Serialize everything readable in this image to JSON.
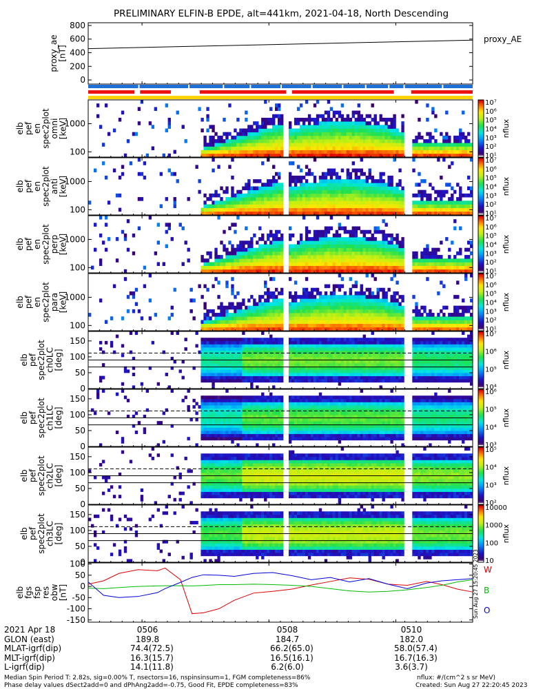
{
  "title": "PRELIMINARY ELFIN-B EPDE, alt=441km, 2021-04-18, North Descending",
  "side_stamp": "Sun Aug 27 15:20:45 2023",
  "colors": {
    "status_blue": "#1e6fd6",
    "status_red": "#ee1111",
    "status_yellow": "#ffd400",
    "w_line": "#dd0000",
    "b_line": "#00bb00",
    "o_line": "#0000dd",
    "grid_line": "#000000"
  },
  "chart_data": [
    {
      "type": "line",
      "name": "proxy_ae",
      "ylabel_lines": [
        "proxy_ae",
        "[nT]"
      ],
      "legend": "proxy_AE",
      "y_ticks": [
        "800",
        "600",
        "400",
        "200",
        "0"
      ],
      "y_tick_values": [
        800,
        600,
        400,
        200,
        0
      ],
      "ylim": [
        -60,
        840
      ],
      "x": [
        0,
        1
      ],
      "y": [
        460,
        585
      ]
    },
    {
      "type": "heatmap",
      "name": "spec-perp-omni",
      "ylabel_lines": [
        "elb",
        "pef",
        "en",
        "spec2plot",
        "omni",
        "[keV]"
      ],
      "y_ticks": [
        "1000",
        "100"
      ],
      "y_tick_values": [
        1000,
        100
      ],
      "ylim_log": [
        65,
        7000
      ],
      "colorbar": {
        "label": "nflux",
        "ticks": [
          "10⁷",
          "10⁶",
          "10⁵",
          "10⁴",
          "10³",
          "10²",
          "10¹"
        ],
        "values": [
          7,
          6,
          5,
          4,
          3,
          2,
          1
        ]
      }
    },
    {
      "type": "heatmap",
      "name": "spec-perp-anti",
      "ylabel_lines": [
        "elb",
        "pef",
        "en",
        "spec2plot",
        "anti",
        "[keV]"
      ],
      "y_ticks": [
        "1000",
        "100"
      ],
      "y_tick_values": [
        1000,
        100
      ],
      "ylim_log": [
        65,
        7000
      ],
      "colorbar": {
        "label": "nflux",
        "ticks": [
          "10⁷",
          "10⁶",
          "10⁵",
          "10⁴",
          "10³",
          "10²",
          "10¹"
        ],
        "values": [
          7,
          6,
          5,
          4,
          3,
          2,
          1
        ]
      }
    },
    {
      "type": "heatmap",
      "name": "spec-perp-perp",
      "ylabel_lines": [
        "elb",
        "pef",
        "en",
        "spec2plot",
        "perp",
        "[keV]"
      ],
      "y_ticks": [
        "1000",
        "100"
      ],
      "y_tick_values": [
        1000,
        100
      ],
      "ylim_log": [
        65,
        7000
      ],
      "colorbar": {
        "label": "nflux",
        "ticks": [
          "10⁷",
          "10⁶",
          "10⁵",
          "10⁴",
          "10³",
          "10²",
          "10¹"
        ],
        "values": [
          7,
          6,
          5,
          4,
          3,
          2,
          1
        ]
      }
    },
    {
      "type": "heatmap",
      "name": "spec-perp-para",
      "ylabel_lines": [
        "elb",
        "pef",
        "en",
        "spec2plot",
        "para",
        "[keV]"
      ],
      "y_ticks": [
        "1000",
        "100"
      ],
      "y_tick_values": [
        1000,
        100
      ],
      "ylim_log": [
        65,
        7000
      ],
      "colorbar": {
        "label": "nflux",
        "ticks": [
          "10⁷",
          "10⁶",
          "10⁵",
          "10⁴",
          "10³",
          "10²",
          "10¹"
        ],
        "values": [
          7,
          6,
          5,
          4,
          3,
          2,
          1
        ]
      }
    },
    {
      "type": "heatmap",
      "name": "spec-pa-ch0",
      "ylabel_lines": [
        "elb",
        "pef",
        "spec2plot",
        "ch0LC",
        "[deg]"
      ],
      "y_ticks": [
        "150",
        "100",
        "50",
        "0"
      ],
      "y_tick_values": [
        150,
        100,
        50,
        0
      ],
      "ylim": [
        0,
        180
      ],
      "colorbar": {
        "label": "nflux",
        "ticks": [
          "10⁷",
          "10⁶",
          "10⁵",
          "10⁴"
        ],
        "values": [
          7,
          6,
          5,
          4
        ]
      }
    },
    {
      "type": "heatmap",
      "name": "spec-pa-ch1",
      "ylabel_lines": [
        "elb",
        "pef",
        "spec2plot",
        "ch1LC",
        "[deg]"
      ],
      "y_ticks": [
        "150",
        "100",
        "50",
        "0"
      ],
      "y_tick_values": [
        150,
        100,
        50,
        0
      ],
      "ylim": [
        0,
        180
      ],
      "colorbar": {
        "label": "nflux",
        "ticks": [
          "10⁶",
          "10⁵",
          "10⁴",
          "10³"
        ],
        "values": [
          6,
          5,
          4,
          3
        ]
      }
    },
    {
      "type": "heatmap",
      "name": "spec-pa-ch2",
      "ylabel_lines": [
        "elb",
        "pef",
        "spec2plot",
        "ch2LC",
        "[deg]"
      ],
      "y_ticks": [
        "150",
        "100",
        "50",
        "0"
      ],
      "y_tick_values": [
        150,
        100,
        50,
        0
      ],
      "ylim": [
        0,
        180
      ],
      "colorbar": {
        "label": "nflux",
        "ticks": [
          "10⁵",
          "10⁴",
          "10³",
          "10²"
        ],
        "values": [
          5,
          4,
          3,
          2
        ]
      }
    },
    {
      "type": "heatmap",
      "name": "spec-pa-ch3",
      "ylabel_lines": [
        "elb",
        "pef",
        "spec2plot",
        "ch3LC",
        "[deg]"
      ],
      "y_ticks": [
        "150",
        "100",
        "50",
        "0"
      ],
      "y_tick_values": [
        150,
        100,
        50,
        0
      ],
      "ylim": [
        0,
        180
      ],
      "colorbar": {
        "label": "nflux",
        "ticks": [
          "10000",
          "1000",
          "100",
          "10"
        ],
        "values": [
          4,
          3,
          2,
          1
        ]
      }
    },
    {
      "type": "line",
      "name": "fgs-residual",
      "ylabel_lines": [
        "elb",
        "fgs",
        "fsp",
        "res",
        "obw",
        "[nT]"
      ],
      "y_ticks": [
        "100",
        "50",
        "0",
        "-50",
        "-100",
        "-150"
      ],
      "y_tick_values": [
        100,
        50,
        0,
        -50,
        -100,
        -150
      ],
      "ylim": [
        -160,
        105
      ],
      "legend": [
        "W",
        "B",
        "O"
      ],
      "x": [
        0,
        0.04,
        0.08,
        0.13,
        0.18,
        0.2,
        0.24,
        0.27,
        0.3,
        0.34,
        0.38,
        0.43,
        0.48,
        0.53,
        0.58,
        0.63,
        0.68,
        0.73,
        0.78,
        0.83,
        0.88,
        0.92,
        0.96,
        1
      ],
      "series": [
        {
          "name": "W",
          "values": [
            10,
            25,
            58,
            75,
            70,
            82,
            30,
            -122,
            -118,
            -100,
            -62,
            -30,
            -22,
            -12,
            6,
            22,
            38,
            32,
            10,
            5,
            22,
            8,
            -12,
            -25
          ]
        },
        {
          "name": "B",
          "values": [
            -8,
            -10,
            -5,
            0,
            2,
            3,
            3,
            2,
            4,
            8,
            8,
            10,
            8,
            5,
            0,
            -10,
            -20,
            -25,
            -22,
            -15,
            -5,
            5,
            20,
            30
          ]
        },
        {
          "name": "O",
          "values": [
            20,
            -40,
            -50,
            -45,
            -28,
            -10,
            18,
            40,
            52,
            50,
            45,
            58,
            62,
            48,
            30,
            40,
            20,
            35,
            10,
            -10,
            15,
            25,
            30,
            35
          ]
        }
      ]
    }
  ],
  "x_axis": {
    "tick_labels": [
      "0506",
      "0508",
      "0510"
    ],
    "tick_positions": [
      0.14,
      0.47,
      0.8
    ]
  },
  "footer": {
    "rows": [
      {
        "label": "2021 Apr 18",
        "c1": "0506",
        "c2": "0508",
        "c3": "0510"
      },
      {
        "label": "GLON (east)",
        "c1": "189.8",
        "c2": "184.7",
        "c3": "182.0"
      },
      {
        "label": "MLAT-igrf(dip)",
        "c1": "74.4(72.5)",
        "c2": "66.2(65.0)",
        "c3": "58.0(57.4)"
      },
      {
        "label": "MLT-igrf(dip)",
        "c1": "16.3(15.7)",
        "c2": "16.5(16.1)",
        "c3": "16.7(16.3)"
      },
      {
        "label": "L-igrf(dip)",
        "c1": "14.1(11.8)",
        "c2": "6.2(6.0)",
        "c3": "3.6(3.7)"
      }
    ],
    "note1": "Median Spin Period T: 2.82s, sig=0.00% T, nsectors=16, nspinsinsum=1, FGM completeness=86%",
    "note2": "Phase delay values dSect2add=0 and dPhAng2add=-0.75, Good Fit, EPDE completeness=83%",
    "nflux_units": "nflux: #/(cm^2 s sr MeV)",
    "created": "Created: Sun Aug 27 22:20:45 2023"
  }
}
